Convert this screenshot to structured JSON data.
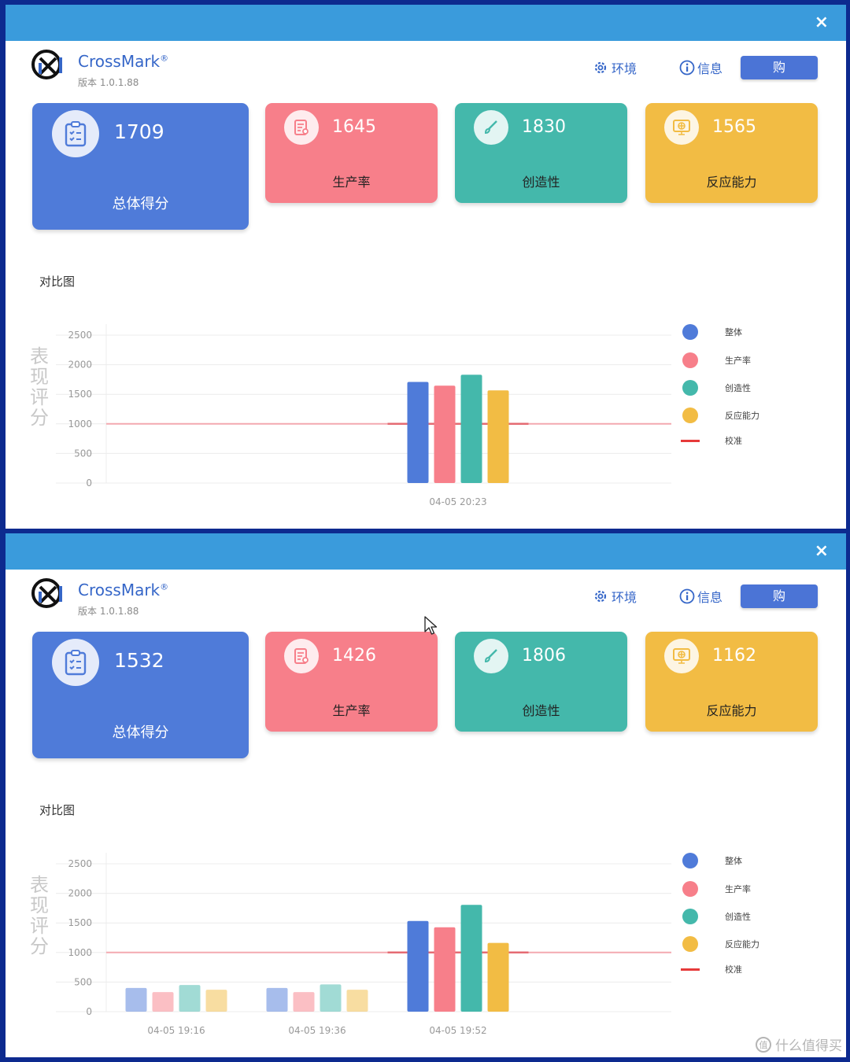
{
  "colors": {
    "overall": "#4f7bd9",
    "productivity": "#f77f8a",
    "creativity": "#44b8ab",
    "responsiveness": "#f2bc44",
    "calibration": "#e63a3a",
    "accent": "#3566c8",
    "titlebar": "#3a9bdc"
  },
  "windows": [
    {
      "close_icon": "×",
      "app": {
        "name": "CrossMark",
        "registered": "®",
        "version": "版本 1.0.1.88"
      },
      "header": {
        "env_label": "环境",
        "info_label": "信息",
        "buy_label": "购"
      },
      "scores": {
        "total": {
          "value": "1709",
          "label": "总体得分",
          "icon": "clipboard-icon"
        },
        "productivity": {
          "value": "1645",
          "label": "生产率",
          "icon": "document-icon"
        },
        "creativity": {
          "value": "1830",
          "label": "创造性",
          "icon": "brush-icon"
        },
        "responsiveness": {
          "value": "1565",
          "label": "反应能力",
          "icon": "monitor-icon"
        }
      },
      "section_title": "对比图",
      "legend": {
        "overall": "整体",
        "productivity": "生产率",
        "creativity": "创造性",
        "responsiveness": "反应能力",
        "calibration": "校准"
      },
      "chart_data": {
        "type": "bar",
        "ylabel": "表现评分",
        "ylim": [
          0,
          2500
        ],
        "yticks": [
          2500,
          2000,
          1500,
          1000,
          500,
          0
        ],
        "categories": [
          "04-05 20:23"
        ],
        "series": [
          {
            "name": "整体",
            "values": [
              1709
            ]
          },
          {
            "name": "生产率",
            "values": [
              1645
            ]
          },
          {
            "name": "创造性",
            "values": [
              1830
            ]
          },
          {
            "name": "反应能力",
            "values": [
              1565
            ]
          }
        ],
        "reference_line": {
          "name": "校准",
          "value": 1000
        },
        "highlight_index": 0,
        "grid": true,
        "legend_position": "right"
      }
    },
    {
      "close_icon": "×",
      "app": {
        "name": "CrossMark",
        "registered": "®",
        "version": "版本 1.0.1.88"
      },
      "header": {
        "env_label": "环境",
        "info_label": "信息",
        "buy_label": "购"
      },
      "scores": {
        "total": {
          "value": "1532",
          "label": "总体得分",
          "icon": "clipboard-icon"
        },
        "productivity": {
          "value": "1426",
          "label": "生产率",
          "icon": "document-icon"
        },
        "creativity": {
          "value": "1806",
          "label": "创造性",
          "icon": "brush-icon"
        },
        "responsiveness": {
          "value": "1162",
          "label": "反应能力",
          "icon": "monitor-icon"
        }
      },
      "section_title": "对比图",
      "legend": {
        "overall": "整体",
        "productivity": "生产率",
        "creativity": "创造性",
        "responsiveness": "反应能力",
        "calibration": "校准"
      },
      "chart_data": {
        "type": "bar",
        "ylabel": "表现评分",
        "ylim": [
          0,
          2500
        ],
        "yticks": [
          2500,
          2000,
          1500,
          1000,
          500,
          0
        ],
        "categories": [
          "04-05 19:16",
          "04-05 19:36",
          "04-05 19:52"
        ],
        "series": [
          {
            "name": "整体",
            "values": [
              400,
              400,
              1532
            ]
          },
          {
            "name": "生产率",
            "values": [
              330,
              330,
              1426
            ]
          },
          {
            "name": "创造性",
            "values": [
              450,
              460,
              1806
            ]
          },
          {
            "name": "反应能力",
            "values": [
              370,
              370,
              1162
            ]
          }
        ],
        "reference_line": {
          "name": "校准",
          "value": 1000
        },
        "highlight_index": 2,
        "grid": true,
        "legend_position": "right"
      }
    }
  ],
  "watermark": "什么值得买"
}
